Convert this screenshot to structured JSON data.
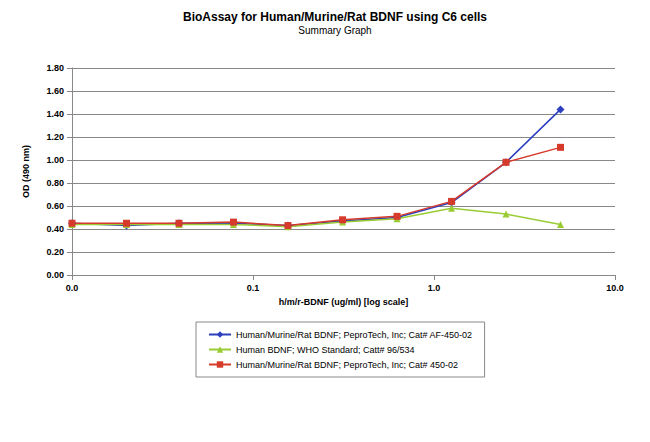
{
  "chart_data": {
    "type": "line",
    "title": "BioAssay for Human/Murine/Rat BDNF using C6 cells",
    "subtitle": "Summary Graph",
    "x_label": "h/m/r-BDNF (ug/ml) [log scale]",
    "y_label": "OD (490 nm)",
    "x": [
      0.01,
      0.02,
      0.039,
      0.078,
      0.156,
      0.3125,
      0.625,
      1.25,
      2.5,
      5
    ],
    "series": [
      {
        "name": "Human/Murine/Rat BDNF; PeproTech, Inc; Cat# AF-450-02",
        "color": "#2b3fbf",
        "marker": "diamond",
        "values": [
          0.45,
          0.43,
          0.45,
          0.45,
          0.43,
          0.47,
          0.5,
          0.63,
          0.98,
          1.44
        ]
      },
      {
        "name": "Human BDNF; WHO Standard; Catt# 96/534",
        "color": "#99cc33",
        "marker": "triangle",
        "values": [
          0.44,
          0.44,
          0.44,
          0.44,
          0.42,
          0.46,
          0.49,
          0.58,
          0.53,
          0.44
        ]
      },
      {
        "name": "Human/Murine/Rat BDNF; PeproTech, Inc; Cat# 450-02",
        "color": "#d63a2a",
        "marker": "square",
        "values": [
          0.45,
          0.45,
          0.45,
          0.46,
          0.43,
          0.48,
          0.51,
          0.64,
          0.98,
          1.11
        ]
      }
    ],
    "xlim": [
      0.01,
      10
    ],
    "xticks": [
      {
        "value": 0.01,
        "label": "0.0"
      },
      {
        "value": 0.1,
        "label": "0.1"
      },
      {
        "value": 1,
        "label": "1.0"
      },
      {
        "value": 10,
        "label": "10.0"
      }
    ],
    "ylim": [
      0,
      1.8
    ],
    "yticks": [
      {
        "value": 0,
        "label": "0.00"
      },
      {
        "value": 0.2,
        "label": "0.20"
      },
      {
        "value": 0.4,
        "label": "0.40"
      },
      {
        "value": 0.6,
        "label": "0.60"
      },
      {
        "value": 0.8,
        "label": "0.80"
      },
      {
        "value": 1,
        "label": "1.00"
      },
      {
        "value": 1.2,
        "label": "1.20"
      },
      {
        "value": 1.4,
        "label": "1.40"
      },
      {
        "value": 1.6,
        "label": "1.60"
      },
      {
        "value": 1.8,
        "label": "1.80"
      }
    ],
    "log": "x",
    "grid": true,
    "legend": "bottom"
  }
}
